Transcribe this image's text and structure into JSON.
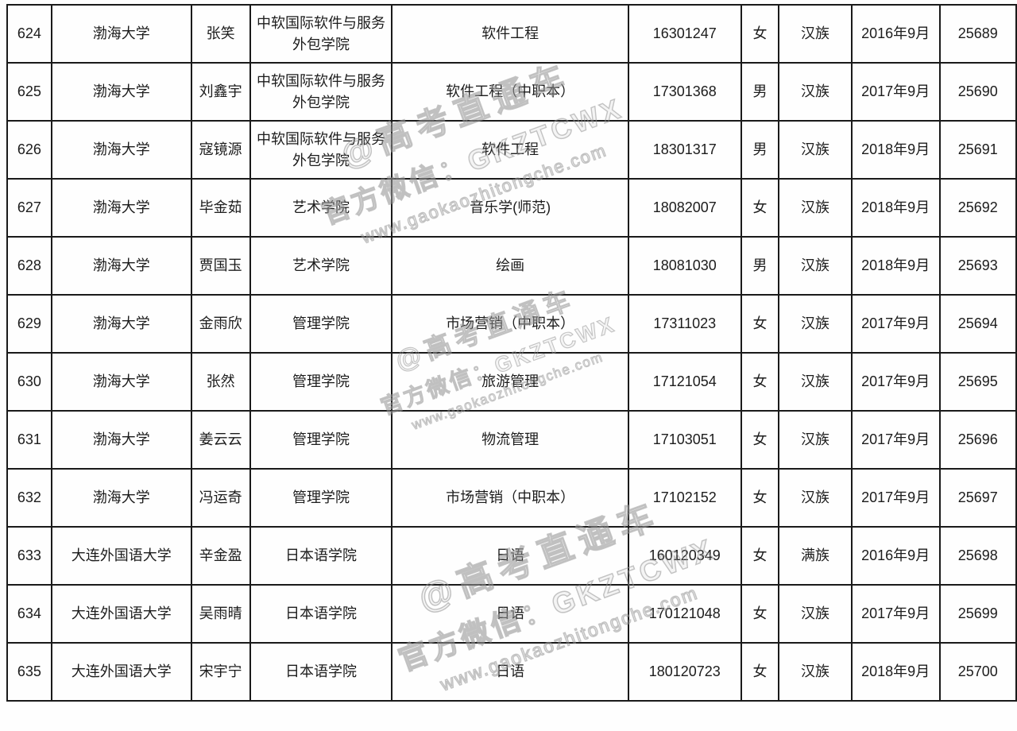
{
  "table": {
    "grid_color": "#1a1a1a",
    "text_color": "#1c1c1c",
    "columns": [
      {
        "key": "row_no"
      },
      {
        "key": "university"
      },
      {
        "key": "student_name"
      },
      {
        "key": "college"
      },
      {
        "key": "major"
      },
      {
        "key": "student_id"
      },
      {
        "key": "gender"
      },
      {
        "key": "ethnicity"
      },
      {
        "key": "enroll_date"
      },
      {
        "key": "serial_no"
      }
    ],
    "rows": [
      {
        "row_no": "624",
        "university": "渤海大学",
        "student_name": "张笑",
        "college": "中软国际软件与服务\n外包学院",
        "major": "软件工程",
        "student_id": "16301247",
        "gender": "女",
        "ethnicity": "汉族",
        "enroll_date": "2016年9月",
        "serial_no": "25689"
      },
      {
        "row_no": "625",
        "university": "渤海大学",
        "student_name": "刘鑫宇",
        "college": "中软国际软件与服务\n外包学院",
        "major": "软件工程（中职本）",
        "student_id": "17301368",
        "gender": "男",
        "ethnicity": "汉族",
        "enroll_date": "2017年9月",
        "serial_no": "25690"
      },
      {
        "row_no": "626",
        "university": "渤海大学",
        "student_name": "寇镜源",
        "college": "中软国际软件与服务\n外包学院",
        "major": "软件工程",
        "student_id": "18301317",
        "gender": "男",
        "ethnicity": "汉族",
        "enroll_date": "2018年9月",
        "serial_no": "25691"
      },
      {
        "row_no": "627",
        "university": "渤海大学",
        "student_name": "毕金茹",
        "college": "艺术学院",
        "major": "音乐学(师范)",
        "student_id": "18082007",
        "gender": "女",
        "ethnicity": "汉族",
        "enroll_date": "2018年9月",
        "serial_no": "25692"
      },
      {
        "row_no": "628",
        "university": "渤海大学",
        "student_name": "贾国玉",
        "college": "艺术学院",
        "major": "绘画",
        "student_id": "18081030",
        "gender": "男",
        "ethnicity": "汉族",
        "enroll_date": "2018年9月",
        "serial_no": "25693"
      },
      {
        "row_no": "629",
        "university": "渤海大学",
        "student_name": "金雨欣",
        "college": "管理学院",
        "major": "市场营销（中职本）",
        "student_id": "17311023",
        "gender": "女",
        "ethnicity": "汉族",
        "enroll_date": "2017年9月",
        "serial_no": "25694"
      },
      {
        "row_no": "630",
        "university": "渤海大学",
        "student_name": "张然",
        "college": "管理学院",
        "major": "旅游管理",
        "student_id": "17121054",
        "gender": "女",
        "ethnicity": "汉族",
        "enroll_date": "2017年9月",
        "serial_no": "25695"
      },
      {
        "row_no": "631",
        "university": "渤海大学",
        "student_name": "姜云云",
        "college": "管理学院",
        "major": "物流管理",
        "student_id": "17103051",
        "gender": "女",
        "ethnicity": "汉族",
        "enroll_date": "2017年9月",
        "serial_no": "25696"
      },
      {
        "row_no": "632",
        "university": "渤海大学",
        "student_name": "冯运奇",
        "college": "管理学院",
        "major": "市场营销（中职本）",
        "student_id": "17102152",
        "gender": "女",
        "ethnicity": "汉族",
        "enroll_date": "2017年9月",
        "serial_no": "25697"
      },
      {
        "row_no": "633",
        "university": "大连外国语大学",
        "student_name": "辛金盈",
        "college": "日本语学院",
        "major": "日语",
        "student_id": "160120349",
        "gender": "女",
        "ethnicity": "满族",
        "enroll_date": "2016年9月",
        "serial_no": "25698"
      },
      {
        "row_no": "634",
        "university": "大连外国语大学",
        "student_name": "吴雨晴",
        "college": "日本语学院",
        "major": "日语",
        "student_id": "170121048",
        "gender": "女",
        "ethnicity": "汉族",
        "enroll_date": "2017年9月",
        "serial_no": "25699"
      },
      {
        "row_no": "635",
        "university": "大连外国语大学",
        "student_name": "宋宇宁",
        "college": "日本语学院",
        "major": "日语",
        "student_id": "180120723",
        "gender": "女",
        "ethnicity": "汉族",
        "enroll_date": "2018年9月",
        "serial_no": "25700"
      }
    ]
  },
  "watermark": {
    "color": "#9a9a9a",
    "lines": [
      "@高考直通车",
      "官方微信：GKZTCWX",
      "www.gaokaozhitongche.com"
    ]
  }
}
